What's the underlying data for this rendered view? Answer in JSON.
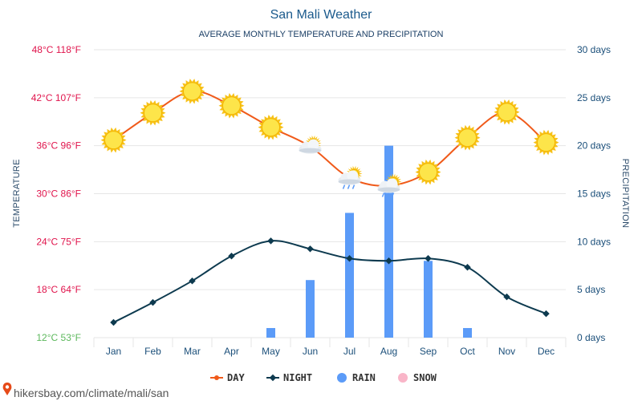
{
  "chart_data": {
    "type": "line",
    "title": "San Mali Weather",
    "subtitle": "AVERAGE MONTHLY TEMPERATURE AND PRECIPITATION",
    "categories": [
      "Jan",
      "Feb",
      "Mar",
      "Apr",
      "May",
      "Jun",
      "Jul",
      "Aug",
      "Sep",
      "Oct",
      "Nov",
      "Dec"
    ],
    "y_left": {
      "label": "TEMPERATURE",
      "ticks": [
        "48°C 118°F",
        "42°C 107°F",
        "36°C 96°F",
        "30°C 86°F",
        "24°C 75°F",
        "18°C 64°F",
        "12°C 53°F"
      ],
      "ylim": [
        12,
        48
      ],
      "tick_colors": [
        "#e0144c",
        "#e0144c",
        "#e0144c",
        "#e0144c",
        "#e0144c",
        "#e0144c",
        "#5cb85c"
      ]
    },
    "y_right": {
      "label": "PRECIPITATION",
      "ticks": [
        "30 days",
        "25 days",
        "20 days",
        "15 days",
        "10 days",
        "5 days",
        "0 days"
      ],
      "ylim": [
        0,
        30
      ]
    },
    "series": [
      {
        "name": "DAY",
        "type": "line",
        "color": "#f05a1a",
        "values": [
          36.7,
          40.1,
          42.8,
          41.0,
          38.3,
          35.9,
          32.0,
          31.0,
          32.7,
          37.0,
          40.2,
          36.4
        ],
        "icons": [
          "sun-icon",
          "sun-icon",
          "sun-icon",
          "sun-icon",
          "sun-icon",
          "cloud-sun-icon",
          "rain-cloud-icon",
          "rain-cloud-icon",
          "sun-icon",
          "sun-icon",
          "sun-icon",
          "sun-icon"
        ]
      },
      {
        "name": "NIGHT",
        "type": "line",
        "color": "#0d3a4f",
        "values": [
          13.9,
          16.4,
          19.1,
          22.2,
          24.1,
          23.1,
          21.9,
          21.6,
          21.9,
          20.8,
          17.1,
          15.0
        ]
      },
      {
        "name": "RAIN",
        "type": "bar",
        "color": "#5b9bf8",
        "values": [
          0,
          0,
          0,
          0,
          1,
          6,
          13,
          20,
          8,
          1,
          0,
          0
        ]
      },
      {
        "name": "SNOW",
        "type": "bar",
        "color": "#f9b5c8",
        "values": [
          0,
          0,
          0,
          0,
          0,
          0,
          0,
          0,
          0,
          0,
          0,
          0
        ]
      }
    ],
    "legend": {
      "placement": "bottom",
      "items": [
        "DAY",
        "NIGHT",
        "RAIN",
        "SNOW"
      ]
    },
    "grid": true
  },
  "footer": {
    "text": "hikersbay.com/climate/mali/san"
  }
}
